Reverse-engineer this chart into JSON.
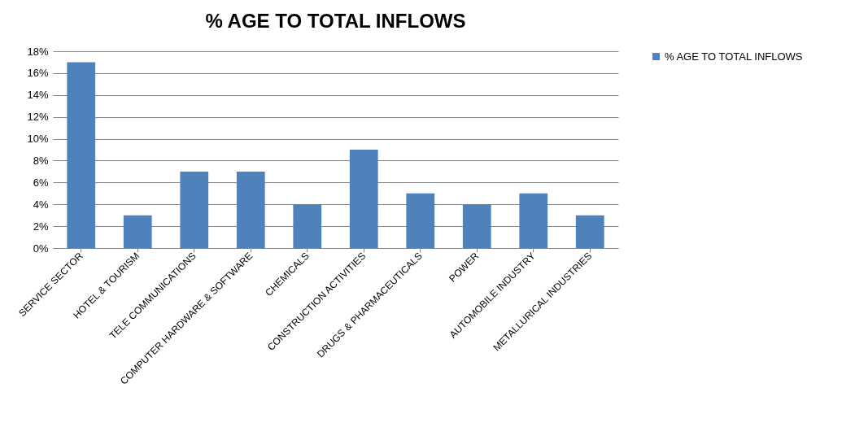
{
  "chart_data": {
    "type": "bar",
    "title": "% AGE TO TOTAL INFLOWS",
    "categories": [
      "SERVICE SECTOR",
      "HOTEL & TOURISM",
      "TELE COMMUNICATIONS",
      "COMPUTER HARDWARE & SOFTWARE",
      "CHEMICALS",
      "CONSTRUCTION ACTIVITIES",
      "DRUGS & PHARMACEUTICALS",
      "POWER",
      "AUTOMOBILE INDUSTRY",
      "METALLURICAL INDUSTRIES"
    ],
    "series": [
      {
        "name": "% AGE TO TOTAL INFLOWS",
        "color": "#4f81bd",
        "values": [
          17,
          3,
          7,
          7,
          4,
          9,
          5,
          4,
          5,
          3
        ]
      }
    ],
    "ylim": [
      0,
      18
    ],
    "yticks": [
      {
        "value": 0,
        "label": "0%"
      },
      {
        "value": 2,
        "label": "2%"
      },
      {
        "value": 4,
        "label": "4%"
      },
      {
        "value": 6,
        "label": "6%"
      },
      {
        "value": 8,
        "label": "8%"
      },
      {
        "value": 10,
        "label": "10%"
      },
      {
        "value": 12,
        "label": "12%"
      },
      {
        "value": 14,
        "label": "14%"
      },
      {
        "value": 16,
        "label": "16%"
      },
      {
        "value": 18,
        "label": "18%"
      }
    ],
    "grid": "y",
    "legend": "right"
  }
}
